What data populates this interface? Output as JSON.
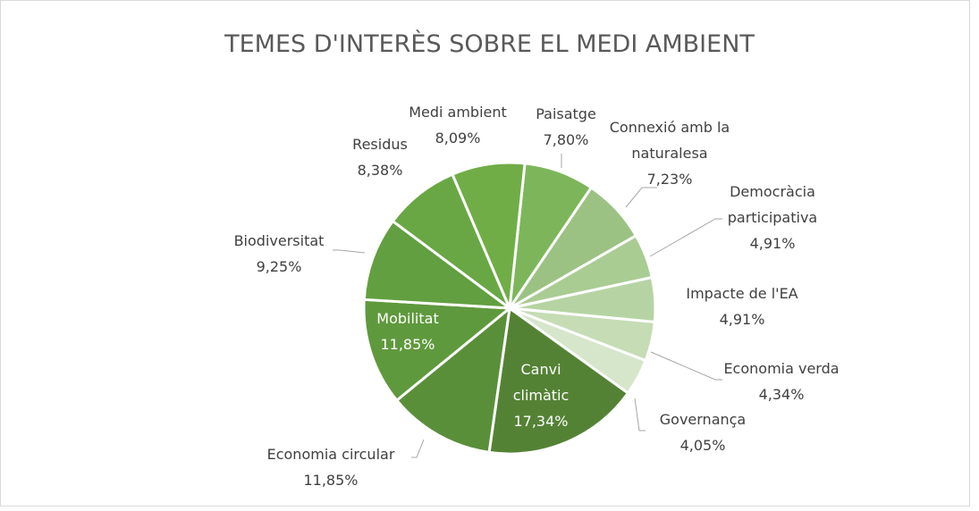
{
  "chart_data": {
    "type": "pie",
    "title": "TEMES D'INTERÈS SOBRE EL MEDI AMBIENT",
    "start_angle": 6,
    "categories": [
      "Paisatge",
      "Connexió amb la naturalesa",
      "Democràcia participativa",
      "Impacte de l'EA",
      "Economia verda",
      "Governança",
      "Canvi climàtic",
      "Economia circular",
      "Mobilitat",
      "Biodiversitat",
      "Residus",
      "Medi ambient"
    ],
    "values": [
      7.8,
      7.23,
      4.91,
      4.91,
      4.34,
      4.05,
      17.34,
      11.85,
      11.85,
      9.25,
      8.38,
      8.09
    ],
    "value_labels": [
      "7,80%",
      "7,23%",
      "4,91%",
      "4,91%",
      "4,34%",
      "4,05%",
      "17,34%",
      "11,85%",
      "11,85%",
      "9,25%",
      "8,38%",
      "8,09%"
    ],
    "colors": [
      "#7db65a",
      "#9bc283",
      "#a9cc93",
      "#b6d4a3",
      "#c5dcb5",
      "#d6e6cb",
      "#548235",
      "#5a8f3a",
      "#5f993d",
      "#629f40",
      "#69a745",
      "#70ad47"
    ]
  }
}
